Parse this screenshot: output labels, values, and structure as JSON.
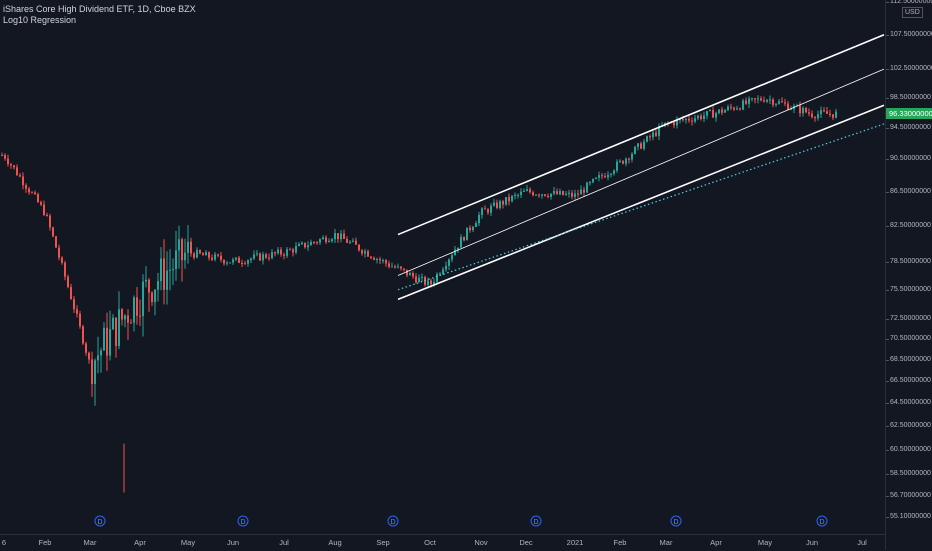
{
  "header": {
    "title": "iShares Core High Dividend ETF, 1D, Cboe BZX",
    "indicator": "Log10 Regression"
  },
  "axis": {
    "currency": "USD",
    "current_price": "96.33000000",
    "y_ticks": [
      "112.50000000",
      "107.50000000",
      "102.50000000",
      "98.50000000",
      "94.50000000",
      "90.50000000",
      "86.50000000",
      "82.50000000",
      "78.50000000",
      "75.50000000",
      "72.50000000",
      "70.50000000",
      "68.50000000",
      "66.50000000",
      "64.50000000",
      "62.50000000",
      "60.50000000",
      "58.50000000",
      "56.70000000",
      "55.10000000"
    ],
    "x_ticks": [
      "6",
      "Feb",
      "Mar",
      "Apr",
      "May",
      "Jun",
      "Jul",
      "Aug",
      "Sep",
      "Oct",
      "Nov",
      "Dec",
      "2021",
      "Feb",
      "Mar",
      "Apr",
      "May",
      "Jun",
      "Jul"
    ]
  },
  "colors": {
    "background": "#131722",
    "up": "#26a69a",
    "down": "#ef5350",
    "channel": "#ffffff",
    "regression_dotted": "#4dd0e1",
    "price_tag": "#26a65b"
  },
  "dividend_marker": "D",
  "chart_data": {
    "type": "candlestick",
    "title": "iShares Core High Dividend ETF, 1D, Cboe BZX",
    "y_scale": "log",
    "ylim": [
      55.1,
      112.5
    ],
    "x_months": [
      "Jan 2020",
      "Feb",
      "Mar",
      "Apr",
      "May",
      "Jun",
      "Jul",
      "Aug",
      "Sep",
      "Oct",
      "Nov",
      "Dec",
      "Jan 2021",
      "Feb",
      "Mar",
      "Apr",
      "May",
      "Jun",
      "Jul"
    ],
    "monthly_close": [
      {
        "month": "2020-01",
        "close": 91.0
      },
      {
        "month": "2020-02",
        "close": 84.0
      },
      {
        "month": "2020-03",
        "close": 68.0
      },
      {
        "month": "2020-04",
        "close": 75.0
      },
      {
        "month": "2020-05",
        "close": 79.5
      },
      {
        "month": "2020-06",
        "close": 78.5
      },
      {
        "month": "2020-07",
        "close": 79.5
      },
      {
        "month": "2020-08",
        "close": 81.5
      },
      {
        "month": "2020-09",
        "close": 78.5
      },
      {
        "month": "2020-10",
        "close": 76.0
      },
      {
        "month": "2020-11",
        "close": 84.0
      },
      {
        "month": "2020-12",
        "close": 86.5
      },
      {
        "month": "2021-01",
        "close": 86.0
      },
      {
        "month": "2021-02",
        "close": 90.0
      },
      {
        "month": "2021-03",
        "close": 95.0
      },
      {
        "month": "2021-04",
        "close": 96.5
      },
      {
        "month": "2021-05",
        "close": 98.5
      },
      {
        "month": "2021-06",
        "close": 96.33
      }
    ],
    "last_price": 96.33,
    "low": 57.0,
    "dividend_months": [
      "2020-03",
      "2020-06",
      "2020-09",
      "2020-12",
      "2021-03",
      "2021-06"
    ],
    "regression_channel": {
      "label": "Log10 Regression",
      "start": "2020-09",
      "end": "2021-07",
      "center_start": 77.0,
      "center_end": 102.5,
      "upper_start": 81.5,
      "upper_end": 107.5,
      "lower_start": 74.5,
      "lower_end": 97.5,
      "dotted_start": 75.5,
      "dotted_end": 95.0
    }
  }
}
